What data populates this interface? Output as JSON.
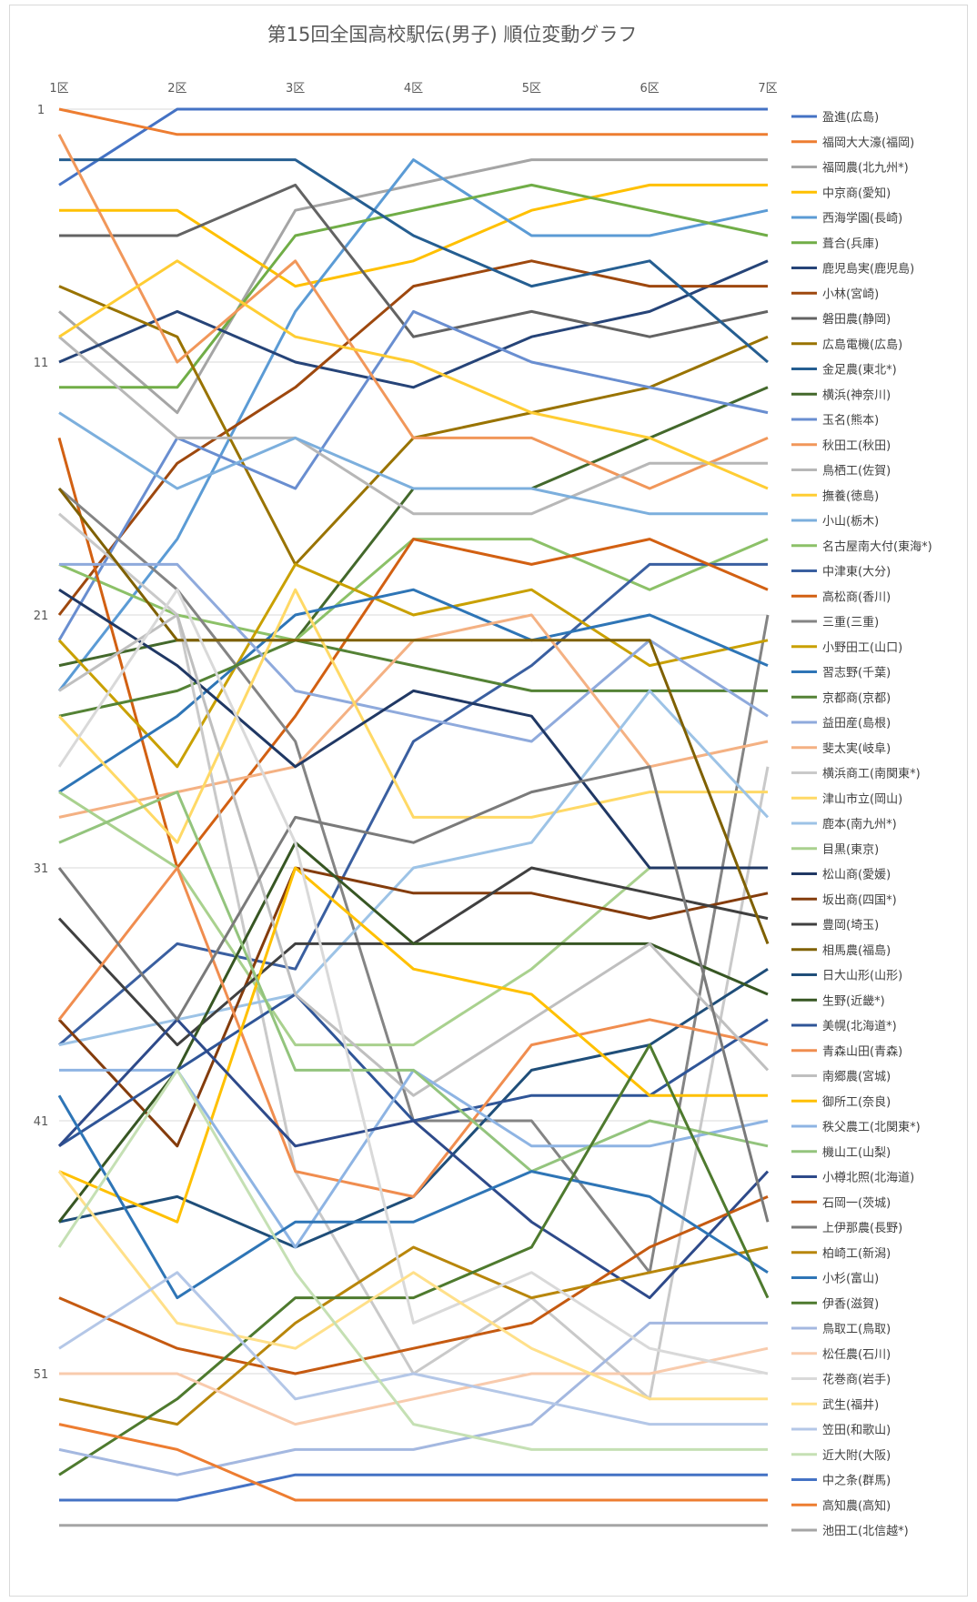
{
  "chart_data": {
    "type": "line",
    "title": "第15回全国高校駅伝(男子) 順位変動グラフ",
    "x": [
      "1区",
      "2区",
      "3区",
      "4区",
      "5区",
      "6区",
      "7区"
    ],
    "y_ticks": [
      "1",
      "11",
      "21",
      "31",
      "41",
      "51"
    ],
    "ylim": [
      1,
      57
    ],
    "y_inverted": true,
    "grid": "horizontal",
    "legend_position": "right",
    "series": [
      {
        "name": "盈進(広島)",
        "color": "#4472C4",
        "values": [
          4,
          1,
          1,
          1,
          1,
          1,
          1
        ]
      },
      {
        "name": "福岡大大濠(福岡)",
        "color": "#ED7D31",
        "values": [
          1,
          2,
          2,
          2,
          2,
          2,
          2
        ]
      },
      {
        "name": "福岡農(北九州*)",
        "color": "#A5A5A5",
        "values": [
          9,
          13,
          5,
          4,
          3,
          3,
          3
        ]
      },
      {
        "name": "中京商(愛知)",
        "color": "#FFC000",
        "values": [
          5,
          5,
          8,
          7,
          5,
          4,
          4
        ]
      },
      {
        "name": "西海学園(長崎)",
        "color": "#5B9BD5",
        "values": [
          24,
          18,
          9,
          3,
          6,
          6,
          5
        ]
      },
      {
        "name": "葺合(兵庫)",
        "color": "#70AD47",
        "values": [
          12,
          12,
          6,
          5,
          4,
          5,
          6
        ]
      },
      {
        "name": "鹿児島実(鹿児島)",
        "color": "#264478",
        "values": [
          11,
          9,
          11,
          12,
          10,
          9,
          7
        ]
      },
      {
        "name": "小林(宮崎)",
        "color": "#9E480E",
        "values": [
          21,
          15,
          12,
          8,
          7,
          8,
          8
        ]
      },
      {
        "name": "磐田農(静岡)",
        "color": "#636363",
        "values": [
          6,
          6,
          4,
          10,
          9,
          10,
          9
        ]
      },
      {
        "name": "広島電機(広島)",
        "color": "#997300",
        "values": [
          8,
          10,
          19,
          14,
          13,
          12,
          10
        ]
      },
      {
        "name": "金足農(東北*)",
        "color": "#255E91",
        "values": [
          3,
          3,
          3,
          6,
          8,
          7,
          11
        ]
      },
      {
        "name": "横浜(神奈川)",
        "color": "#43682B",
        "values": [
          23,
          22,
          22,
          16,
          16,
          14,
          12
        ]
      },
      {
        "name": "玉名(熊本)",
        "color": "#698ED0",
        "values": [
          22,
          14,
          16,
          9,
          11,
          12,
          13
        ]
      },
      {
        "name": "秋田工(秋田)",
        "color": "#F1975A",
        "values": [
          2,
          11,
          7,
          14,
          14,
          16,
          14
        ]
      },
      {
        "name": "鳥栖工(佐賀)",
        "color": "#B7B7B7",
        "values": [
          10,
          14,
          14,
          17,
          17,
          15,
          15
        ]
      },
      {
        "name": "撫養(徳島)",
        "color": "#FFCD33",
        "values": [
          10,
          7,
          10,
          11,
          13,
          14,
          16
        ]
      },
      {
        "name": "小山(栃木)",
        "color": "#7CAFDD",
        "values": [
          13,
          16,
          14,
          16,
          16,
          17,
          17
        ]
      },
      {
        "name": "名古屋南大付(東海*)",
        "color": "#8CC168",
        "values": [
          19,
          21,
          22,
          18,
          18,
          20,
          18
        ]
      },
      {
        "name": "中津東(大分)",
        "color": "#3A5FA0",
        "values": [
          38,
          34,
          35,
          26,
          23,
          19,
          19
        ]
      },
      {
        "name": "高松商(香川)",
        "color": "#D26012",
        "values": [
          14,
          31,
          25,
          18,
          19,
          18,
          20
        ]
      },
      {
        "name": "三重(三重)",
        "color": "#848484",
        "values": [
          16,
          20,
          26,
          41,
          41,
          47,
          21
        ]
      },
      {
        "name": "小野田工(山口)",
        "color": "#C9A000",
        "values": [
          22,
          27,
          19,
          21,
          20,
          23,
          22
        ]
      },
      {
        "name": "習志野(千葉)",
        "color": "#2E75B6",
        "values": [
          28,
          25,
          21,
          20,
          22,
          21,
          23
        ]
      },
      {
        "name": "京都商(京都)",
        "color": "#548235",
        "values": [
          25,
          24,
          22,
          23,
          24,
          24,
          24
        ]
      },
      {
        "name": "益田産(島根)",
        "color": "#8FAADC",
        "values": [
          19,
          19,
          24,
          25,
          26,
          22,
          25
        ]
      },
      {
        "name": "斐太実(岐阜)",
        "color": "#F4B183",
        "values": [
          29,
          28,
          27,
          22,
          21,
          27,
          26
        ]
      },
      {
        "name": "横浜商工(南関東*)",
        "color": "#C9C9C9",
        "values": [
          17,
          21,
          43,
          51,
          48,
          52,
          27
        ]
      },
      {
        "name": "津山市立(岡山)",
        "color": "#FFD966",
        "values": [
          25,
          30,
          20,
          29,
          29,
          28,
          28
        ]
      },
      {
        "name": "鹿本(南九州*)",
        "color": "#9DC3E6",
        "values": [
          38,
          37,
          36,
          31,
          30,
          24,
          29
        ]
      },
      {
        "name": "目黒(東京)",
        "color": "#A9D18E",
        "values": [
          28,
          31,
          38,
          38,
          35,
          31,
          31
        ]
      },
      {
        "name": "松山商(愛媛)",
        "color": "#203864",
        "values": [
          20,
          23,
          27,
          24,
          25,
          31,
          31
        ]
      },
      {
        "name": "坂出商(四国*)",
        "color": "#843C0C",
        "values": [
          37,
          42,
          31,
          32,
          32,
          33,
          32
        ]
      },
      {
        "name": "豊岡(埼玉)",
        "color": "#404040",
        "values": [
          33,
          38,
          34,
          34,
          31,
          32,
          33
        ]
      },
      {
        "name": "相馬農(福島)",
        "color": "#7F6000",
        "values": [
          16,
          22,
          22,
          22,
          22,
          22,
          34
        ]
      },
      {
        "name": "日大山形(山形)",
        "color": "#1F4E79",
        "values": [
          45,
          44,
          46,
          44,
          39,
          38,
          35
        ]
      },
      {
        "name": "生野(近畿*)",
        "color": "#375623",
        "values": [
          45,
          39,
          30,
          34,
          34,
          34,
          36
        ]
      },
      {
        "name": "美幌(北海道*)",
        "color": "#2F5597",
        "values": [
          42,
          39,
          36,
          41,
          40,
          40,
          37
        ]
      },
      {
        "name": "青森山田(青森)",
        "color": "#F08D4F",
        "values": [
          37,
          31,
          43,
          44,
          38,
          37,
          38
        ]
      },
      {
        "name": "南郷農(宮城)",
        "color": "#BFBFBF",
        "values": [
          24,
          21,
          36,
          40,
          37,
          34,
          39
        ]
      },
      {
        "name": "御所工(奈良)",
        "color": "#FFC000",
        "values": [
          43,
          45,
          31,
          35,
          36,
          40,
          40
        ]
      },
      {
        "name": "秩父農工(北関東*)",
        "color": "#8EB4E3",
        "values": [
          39,
          39,
          46,
          39,
          42,
          42,
          41
        ]
      },
      {
        "name": "機山工(山梨)",
        "color": "#93C47D",
        "values": [
          30,
          28,
          39,
          39,
          43,
          41,
          42
        ]
      },
      {
        "name": "小樽北照(北海道)",
        "color": "#2E4A8A",
        "values": [
          42,
          37,
          42,
          41,
          45,
          48,
          43
        ]
      },
      {
        "name": "石岡一(茨城)",
        "color": "#C55A11",
        "values": [
          48,
          50,
          51,
          50,
          49,
          46,
          44
        ]
      },
      {
        "name": "上伊那農(長野)",
        "color": "#7A7A7A",
        "values": [
          31,
          37,
          29,
          30,
          28,
          27,
          45
        ]
      },
      {
        "name": "柏崎工(新潟)",
        "color": "#B8860B",
        "values": [
          52,
          53,
          49,
          46,
          48,
          47,
          46
        ]
      },
      {
        "name": "小杉(富山)",
        "color": "#2E75B6",
        "values": [
          40,
          48,
          45,
          45,
          43,
          44,
          47
        ]
      },
      {
        "name": "伊香(滋賀)",
        "color": "#4E7A2E",
        "values": [
          55,
          52,
          48,
          48,
          46,
          38,
          48
        ]
      },
      {
        "name": "鳥取工(鳥取)",
        "color": "#A4B8E0",
        "values": [
          54,
          55,
          54,
          54,
          53,
          49,
          49
        ]
      },
      {
        "name": "松任農(石川)",
        "color": "#F8CBAD",
        "values": [
          51,
          51,
          53,
          52,
          51,
          51,
          50
        ]
      },
      {
        "name": "花巻商(岩手)",
        "color": "#D9D9D9",
        "values": [
          27,
          20,
          30,
          49,
          47,
          50,
          51
        ]
      },
      {
        "name": "武生(福井)",
        "color": "#FFE08A",
        "values": [
          43,
          49,
          50,
          47,
          50,
          52,
          52
        ]
      },
      {
        "name": "笠田(和歌山)",
        "color": "#B4C7E7",
        "values": [
          50,
          47,
          52,
          51,
          52,
          53,
          53
        ]
      },
      {
        "name": "近大附(大阪)",
        "color": "#C5E0B4",
        "values": [
          46,
          39,
          47,
          53,
          54,
          54,
          54
        ]
      },
      {
        "name": "中之条(群馬)",
        "color": "#4472C4",
        "values": [
          56,
          56,
          55,
          55,
          55,
          55,
          55
        ]
      },
      {
        "name": "高知農(高知)",
        "color": "#ED7D31",
        "values": [
          53,
          54,
          56,
          56,
          56,
          56,
          56
        ]
      },
      {
        "name": "池田工(北信越*)",
        "color": "#A5A5A5",
        "values": [
          57,
          57,
          57,
          57,
          57,
          57,
          57
        ]
      }
    ]
  }
}
